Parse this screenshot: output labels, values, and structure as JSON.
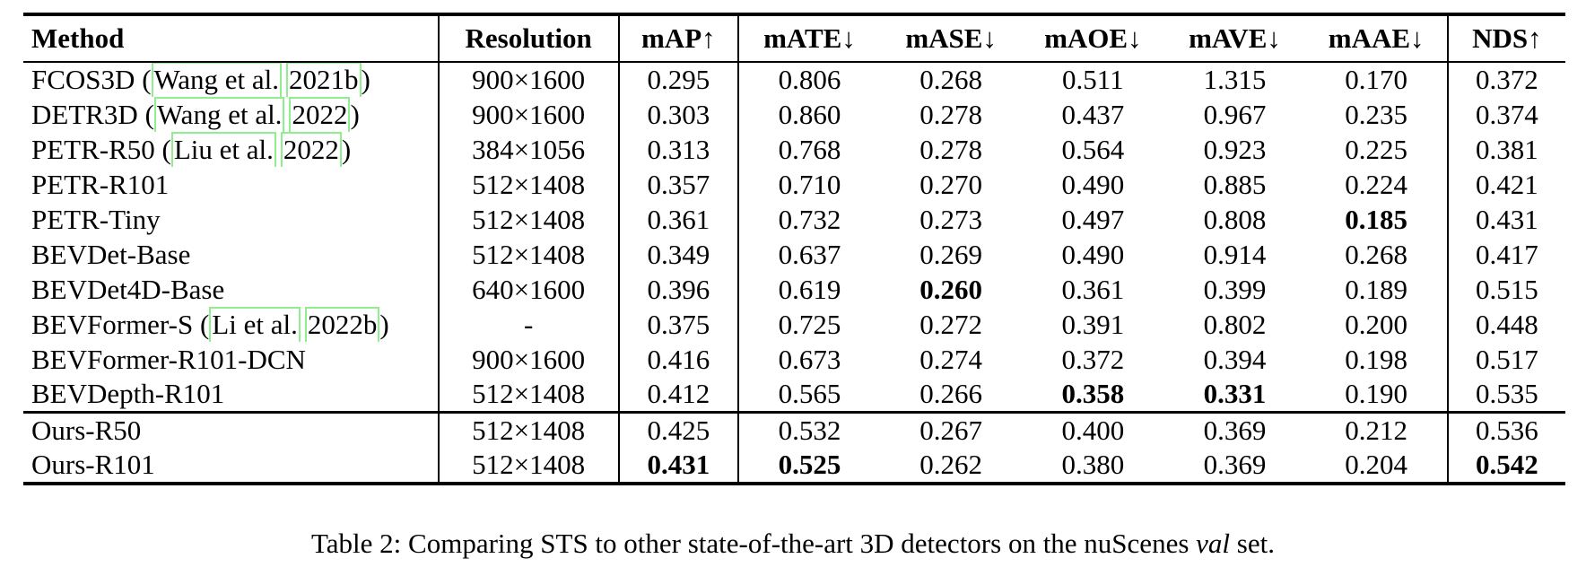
{
  "table": {
    "header": [
      "Method",
      "Resolution",
      "mAP↑",
      "mATE↓",
      "mASE↓",
      "mAOE↓",
      "mAVE↓",
      "mAAE↓",
      "NDS↑"
    ],
    "link_box_color": "#90ee90",
    "rows": [
      {
        "method": "FCOS3D",
        "cite_author": "Wang et al.",
        "cite_year": "2021b",
        "resolution": "900×1600",
        "values": [
          "0.295",
          "0.806",
          "0.268",
          "0.511",
          "1.315",
          "0.170",
          "0.372"
        ],
        "bold": []
      },
      {
        "method": "DETR3D",
        "cite_author": "Wang et al.",
        "cite_year": "2022",
        "resolution": "900×1600",
        "values": [
          "0.303",
          "0.860",
          "0.278",
          "0.437",
          "0.967",
          "0.235",
          "0.374"
        ],
        "bold": []
      },
      {
        "method": "PETR-R50",
        "cite_author": "Liu et al.",
        "cite_year": "2022",
        "resolution": "384×1056",
        "values": [
          "0.313",
          "0.768",
          "0.278",
          "0.564",
          "0.923",
          "0.225",
          "0.381"
        ],
        "bold": []
      },
      {
        "method": "PETR-R101",
        "resolution": "512×1408",
        "values": [
          "0.357",
          "0.710",
          "0.270",
          "0.490",
          "0.885",
          "0.224",
          "0.421"
        ],
        "bold": []
      },
      {
        "method": "PETR-Tiny",
        "resolution": "512×1408",
        "values": [
          "0.361",
          "0.732",
          "0.273",
          "0.497",
          "0.808",
          "0.185",
          "0.431"
        ],
        "bold": [
          5
        ]
      },
      {
        "method": "BEVDet-Base",
        "resolution": "512×1408",
        "values": [
          "0.349",
          "0.637",
          "0.269",
          "0.490",
          "0.914",
          "0.268",
          "0.417"
        ],
        "bold": []
      },
      {
        "method": "BEVDet4D-Base",
        "resolution": "640×1600",
        "values": [
          "0.396",
          "0.619",
          "0.260",
          "0.361",
          "0.399",
          "0.189",
          "0.515"
        ],
        "bold": [
          2
        ]
      },
      {
        "method": "BEVFormer-S",
        "cite_author": "Li et al.",
        "cite_year": "2022b",
        "resolution": "-",
        "values": [
          "0.375",
          "0.725",
          "0.272",
          "0.391",
          "0.802",
          "0.200",
          "0.448"
        ],
        "bold": []
      },
      {
        "method": "BEVFormer-R101-DCN",
        "resolution": "900×1600",
        "values": [
          "0.416",
          "0.673",
          "0.274",
          "0.372",
          "0.394",
          "0.198",
          "0.517"
        ],
        "bold": []
      },
      {
        "method": "BEVDepth-R101",
        "resolution": "512×1408",
        "values": [
          "0.412",
          "0.565",
          "0.266",
          "0.358",
          "0.331",
          "0.190",
          "0.535"
        ],
        "bold": [
          3,
          4
        ]
      }
    ],
    "ours_rows": [
      {
        "method": "Ours-R50",
        "resolution": "512×1408",
        "values": [
          "0.425",
          "0.532",
          "0.267",
          "0.400",
          "0.369",
          "0.212",
          "0.536"
        ],
        "bold": []
      },
      {
        "method": "Ours-R101",
        "resolution": "512×1408",
        "values": [
          "0.431",
          "0.525",
          "0.262",
          "0.380",
          "0.369",
          "0.204",
          "0.542"
        ],
        "bold": [
          0,
          1,
          6
        ]
      }
    ],
    "caption": {
      "prefix": "Table 2: Comparing STS to other state-of-the-art 3D detectors on the nuScenes ",
      "italic": "val",
      "suffix": " set."
    }
  }
}
